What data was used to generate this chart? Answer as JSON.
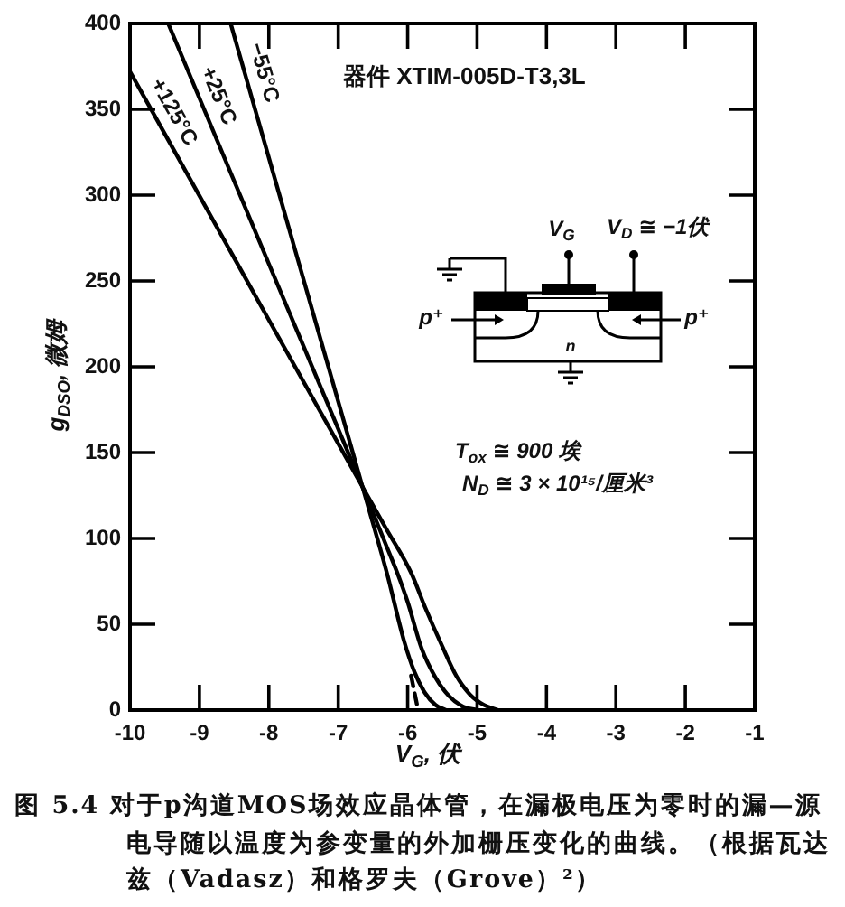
{
  "chart_data": {
    "type": "line",
    "xlabel": "V$_{G}$, 伏",
    "ylabel": "g$_{DSO}$, 微姆",
    "xlim": [
      -10,
      -1
    ],
    "xticks": [
      -10,
      -9,
      -8,
      -7,
      -6,
      -5,
      -4,
      -3,
      -2,
      -1
    ],
    "ylim": [
      0,
      400
    ],
    "yticks": [
      0,
      50,
      100,
      150,
      200,
      250,
      300,
      350,
      400
    ],
    "marker": "none",
    "annotations": [
      "器件 XTIM-005D-T3,3L",
      "V$_{G}$",
      "V$_{D}$ ≅ −1伏",
      "p⁺",
      "p⁺",
      "n",
      "T$_{ox}$ ≅ 900 埃",
      "N$_{D}$ ≅ 3 × 10¹⁵/厘米³",
      "图 5.4 对于p沟道MOS场效应晶体管，在漏极电压为零时的漏—源电导随以温度为参变量的外加栅压变化的曲线。（根据瓦达兹（Vadasz）和格罗夫（Grove）²）"
    ],
    "series": [
      {
        "name": "+125°C",
        "color": "#000000",
        "x": [
          -10,
          -8.3,
          -6.65,
          -6.3,
          -5.95,
          -5.75,
          -5.5,
          -5.3,
          -5.1,
          -4.9,
          -4.7
        ],
        "values": [
          372,
          249,
          130,
          105,
          80,
          60,
          37,
          20,
          9,
          3,
          0
        ]
      },
      {
        "name": "+25°C",
        "color": "#000000",
        "x": [
          -9.45,
          -8.0,
          -6.65,
          -6.3,
          -6.15,
          -6.0,
          -5.8,
          -5.6,
          -5.4,
          -5.2,
          -5.0
        ],
        "values": [
          400,
          260,
          130,
          95,
          80,
          63,
          36,
          19,
          8,
          2,
          0
        ]
      },
      {
        "name": "−55°C",
        "color": "#000000",
        "x": [
          -8.55,
          -7.6,
          -6.65,
          -6.3,
          -6.05,
          -5.9,
          -5.75,
          -5.6,
          -5.45
        ],
        "values": [
          400,
          265,
          130,
          80,
          40,
          22,
          10,
          3,
          0
        ]
      },
      {
        "color": "#000000",
        "line_style": "dashed",
        "x": [
          -5.95,
          -5.85
        ],
        "values": [
          20,
          0
        ]
      }
    ]
  }
}
